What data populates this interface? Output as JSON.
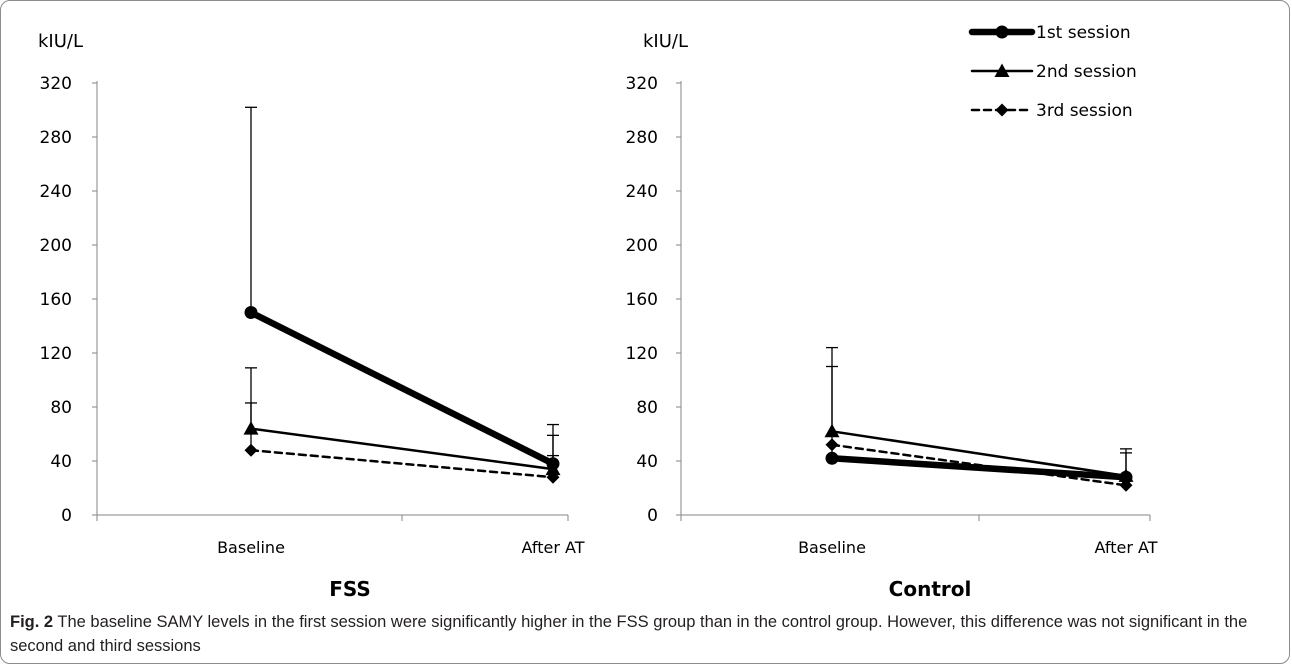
{
  "legend": {
    "position": "top-right",
    "items": [
      {
        "label": "1st session",
        "marker": "circle",
        "dash": "solid",
        "weight": "heavy"
      },
      {
        "label": "2nd session",
        "marker": "triangle",
        "dash": "solid",
        "weight": "normal"
      },
      {
        "label": "3rd session",
        "marker": "diamond",
        "dash": "dashed",
        "weight": "normal"
      }
    ]
  },
  "caption": {
    "label": "Fig. 2",
    "text": "The baseline SAMY levels in the first session were significantly higher in the FSS group than in the control group. However, this difference was not significant in the second and third sessions"
  },
  "chart_data": [
    {
      "type": "line",
      "title": "FSS",
      "ylabel": "kIU/L",
      "categories": [
        "Baseline",
        "After AT"
      ],
      "ylim": [
        0,
        320
      ],
      "yticks": [
        0,
        40,
        80,
        120,
        160,
        200,
        240,
        280,
        320
      ],
      "grid": false,
      "series": [
        {
          "name": "1st session",
          "values": [
            150,
            38
          ],
          "error_upper": [
            302,
            59
          ]
        },
        {
          "name": "2nd session",
          "values": [
            64,
            34
          ],
          "error_upper": [
            109,
            67
          ]
        },
        {
          "name": "3rd session",
          "values": [
            48,
            28
          ],
          "error_upper": [
            83,
            44
          ]
        }
      ]
    },
    {
      "type": "line",
      "title": "Control",
      "ylabel": "kIU/L",
      "categories": [
        "Baseline",
        "After AT"
      ],
      "ylim": [
        0,
        320
      ],
      "yticks": [
        0,
        40,
        80,
        120,
        160,
        200,
        240,
        280,
        320
      ],
      "grid": false,
      "series": [
        {
          "name": "1st session",
          "values": [
            42,
            28
          ],
          "error_upper": [
            110,
            46
          ]
        },
        {
          "name": "2nd session",
          "values": [
            62,
            29
          ],
          "error_upper": [
            124,
            49
          ]
        },
        {
          "name": "3rd session",
          "values": [
            52,
            22
          ],
          "error_upper": [
            52,
            22
          ]
        }
      ]
    }
  ]
}
